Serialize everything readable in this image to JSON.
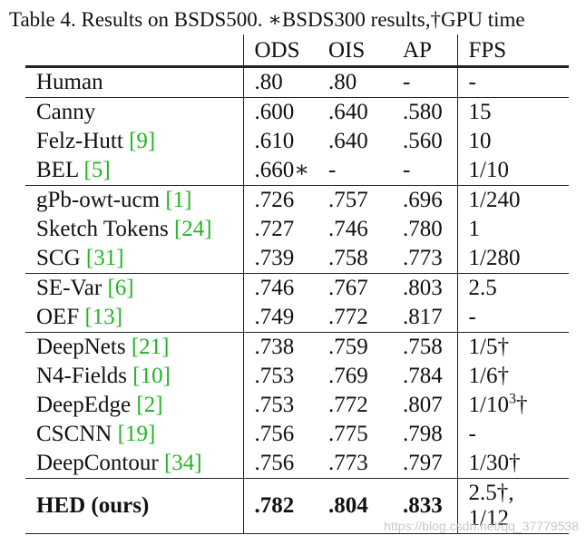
{
  "caption": "Table 4. Results on BSDS500. ∗BSDS300 results,†GPU time",
  "headers": [
    "",
    "ODS",
    "OIS",
    "AP",
    "FPS"
  ],
  "rows": [
    {
      "method": "Human",
      "ref": "",
      "ods": ".80",
      "ois": ".80",
      "ap": "-",
      "fps": "-"
    },
    {
      "method": "Canny",
      "ref": "",
      "ods": ".600",
      "ois": ".640",
      "ap": ".580",
      "fps": "15"
    },
    {
      "method": "Felz-Hutt ",
      "ref": "[9]",
      "ods": ".610",
      "ois": ".640",
      "ap": ".560",
      "fps": "10"
    },
    {
      "method": "BEL ",
      "ref": "[5]",
      "ods": ".660∗",
      "ois": "-",
      "ap": "-",
      "fps": "1/10"
    },
    {
      "method": "gPb-owt-ucm ",
      "ref": "[1]",
      "ods": ".726",
      "ois": ".757",
      "ap": ".696",
      "fps": "1/240"
    },
    {
      "method": "Sketch Tokens ",
      "ref": "[24]",
      "ods": ".727",
      "ois": ".746",
      "ap": ".780",
      "fps": "1"
    },
    {
      "method": "SCG ",
      "ref": "[31]",
      "ods": ".739",
      "ois": ".758",
      "ap": ".773",
      "fps": "1/280"
    },
    {
      "method": "SE-Var ",
      "ref": "[6]",
      "ods": ".746",
      "ois": ".767",
      "ap": ".803",
      "fps": "2.5"
    },
    {
      "method": "OEF ",
      "ref": "[13]",
      "ods": ".749",
      "ois": ".772",
      "ap": ".817",
      "fps": "-"
    },
    {
      "method": "DeepNets ",
      "ref": "[21]",
      "ods": ".738",
      "ois": ".759",
      "ap": ".758",
      "fps": "1/5†"
    },
    {
      "method": "N4-Fields ",
      "ref": "[10]",
      "ods": ".753",
      "ois": ".769",
      "ap": ".784",
      "fps": "1/6†"
    },
    {
      "method": "DeepEdge ",
      "ref": "[2]",
      "ods": ".753",
      "ois": ".772",
      "ap": ".807",
      "fps_base": "1/10",
      "fps_sup": "3",
      "fps_suffix": "†"
    },
    {
      "method": "CSCNN ",
      "ref": "[19]",
      "ods": ".756",
      "ois": ".775",
      "ap": ".798",
      "fps": "-"
    },
    {
      "method": "DeepContour ",
      "ref": "[34]",
      "ods": ".756",
      "ois": ".773",
      "ap": ".797",
      "fps": "1/30†"
    }
  ],
  "hed": {
    "method": "HED (ours)",
    "ods": ".782",
    "ois": ".804",
    "ap": ".833",
    "fps_line1": "2.5†,",
    "fps_line2": "1/12"
  },
  "watermark": "https://blog.csdn.net/qq_37779538"
}
